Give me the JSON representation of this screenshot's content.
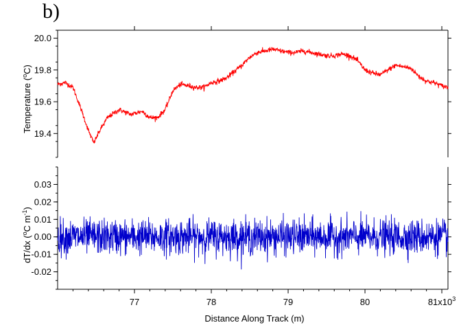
{
  "figure": {
    "panel_label": "b)"
  },
  "chart_data": [
    {
      "type": "line",
      "title": "",
      "xlabel": "",
      "ylabel": "Temperature (°C)",
      "ylabel_parts": {
        "main": "Temperature (",
        "sup": "o",
        "tail": "C)"
      },
      "xlim": [
        76000,
        81080
      ],
      "ylim": [
        19.25,
        20.05
      ],
      "yticks": [
        "19.4",
        "19.6",
        "19.8",
        "20.0"
      ],
      "ytick_values": [
        19.4,
        19.6,
        19.8,
        20.0
      ],
      "grid": false,
      "legend": "none",
      "series": [
        {
          "color": "#ff0000",
          "x": [
            76000,
            76100,
            76200,
            76300,
            76400,
            76470,
            76550,
            76650,
            76800,
            76950,
            77100,
            77200,
            77300,
            77400,
            77500,
            77600,
            77700,
            77800,
            77900,
            78000,
            78100,
            78200,
            78300,
            78400,
            78500,
            78600,
            78700,
            78800,
            78900,
            79000,
            79100,
            79200,
            79300,
            79400,
            79500,
            79600,
            79700,
            79800,
            79900,
            80000,
            80100,
            80200,
            80300,
            80400,
            80500,
            80600,
            80700,
            80800,
            80900,
            81000,
            81080
          ],
          "values": [
            19.71,
            19.72,
            19.69,
            19.56,
            19.42,
            19.34,
            19.42,
            19.5,
            19.55,
            19.52,
            19.54,
            19.5,
            19.5,
            19.55,
            19.67,
            19.71,
            19.7,
            19.69,
            19.69,
            19.72,
            19.73,
            19.75,
            19.79,
            19.83,
            19.88,
            19.91,
            19.92,
            19.93,
            19.92,
            19.91,
            19.91,
            19.92,
            19.91,
            19.9,
            19.89,
            19.89,
            19.9,
            19.89,
            19.86,
            19.8,
            19.78,
            19.77,
            19.8,
            19.83,
            19.82,
            19.81,
            19.76,
            19.73,
            19.72,
            19.7,
            19.69
          ]
        }
      ]
    },
    {
      "type": "line",
      "title": "",
      "xlabel": "Distance Along Track (m)",
      "ylabel": "dT/dx (°C m⁻¹)",
      "ylabel_parts": {
        "main": "dT/dx (",
        "sup": "o",
        "mid": "C m",
        "sup2": "-1",
        "tail": ")"
      },
      "xlim": [
        76000,
        81080
      ],
      "ylim": [
        -0.03,
        0.04
      ],
      "yticks": [
        "-0.02",
        "-0.01",
        "0.00",
        "0.01",
        "0.02",
        "0.03"
      ],
      "ytick_values": [
        -0.02,
        -0.01,
        0.0,
        0.01,
        0.02,
        0.03
      ],
      "xticks": [
        "77",
        "78",
        "79",
        "80",
        "81x10³"
      ],
      "xtick_values": [
        77000,
        78000,
        79000,
        80000,
        81000
      ],
      "x_multiplier_label": {
        "main": "81x10",
        "sup": "3"
      },
      "grid": false,
      "legend": "none",
      "series": [
        {
          "color": "#0000cc",
          "description_of_values": "noise around 0, typical amplitude ±0.008, extremes about -0.025 and +0.021",
          "mean": 0.0,
          "typical_amplitude": 0.008,
          "min": -0.025,
          "max": 0.021
        }
      ]
    }
  ]
}
